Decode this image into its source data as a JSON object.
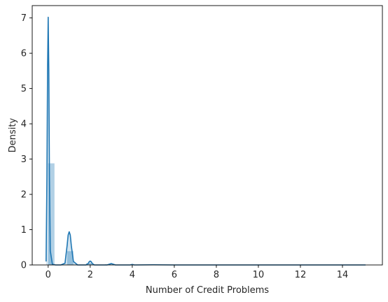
{
  "chart_data": {
    "type": "area",
    "title": "",
    "xlabel": "Number of Credit Problems",
    "ylabel": "Density",
    "xlim": [
      -0.76,
      15.9
    ],
    "ylim": [
      0,
      7.35
    ],
    "xticks": [
      0,
      2,
      4,
      6,
      8,
      10,
      12,
      14
    ],
    "yticks": [
      0,
      1,
      2,
      3,
      4,
      5,
      6,
      7
    ],
    "grid": false,
    "histogram": {
      "bin_width": 0.3,
      "bins": [
        {
          "x0": 0.0,
          "density": 2.88
        },
        {
          "x0": 0.9,
          "density": 0.39
        },
        {
          "x0": 1.8,
          "density": 0.05
        },
        {
          "x0": 2.7,
          "density": 0.02
        }
      ],
      "fill": "#1f77b4",
      "opacity": 0.35
    },
    "kde": {
      "color": "#1f77b4",
      "x": [
        -0.1,
        -0.06,
        -0.03,
        0.0,
        0.03,
        0.06,
        0.1,
        0.2,
        0.35,
        0.6,
        0.8,
        0.9,
        0.95,
        1.0,
        1.05,
        1.1,
        1.2,
        1.4,
        1.8,
        1.9,
        1.95,
        2.0,
        2.05,
        2.1,
        2.2,
        2.8,
        2.9,
        3.0,
        3.1,
        3.2,
        3.9,
        4.0,
        4.1,
        5.0,
        6.0,
        7.0,
        8.0,
        9.0,
        10.0,
        11.0,
        12.0,
        13.0,
        14.0,
        15.0,
        15.1
      ],
      "y": [
        0.1,
        2.5,
        5.5,
        7.02,
        5.5,
        2.5,
        0.4,
        0.02,
        0.0,
        0.0,
        0.05,
        0.55,
        0.85,
        0.94,
        0.85,
        0.55,
        0.1,
        0.0,
        0.0,
        0.04,
        0.09,
        0.11,
        0.09,
        0.04,
        0.0,
        0.0,
        0.02,
        0.04,
        0.02,
        0.0,
        0.0,
        0.015,
        0.0,
        0.005,
        0.0,
        0.0,
        0.0,
        0.0,
        0.0,
        0.0,
        0.0,
        0.0,
        0.0,
        0.0,
        0.0
      ]
    }
  }
}
